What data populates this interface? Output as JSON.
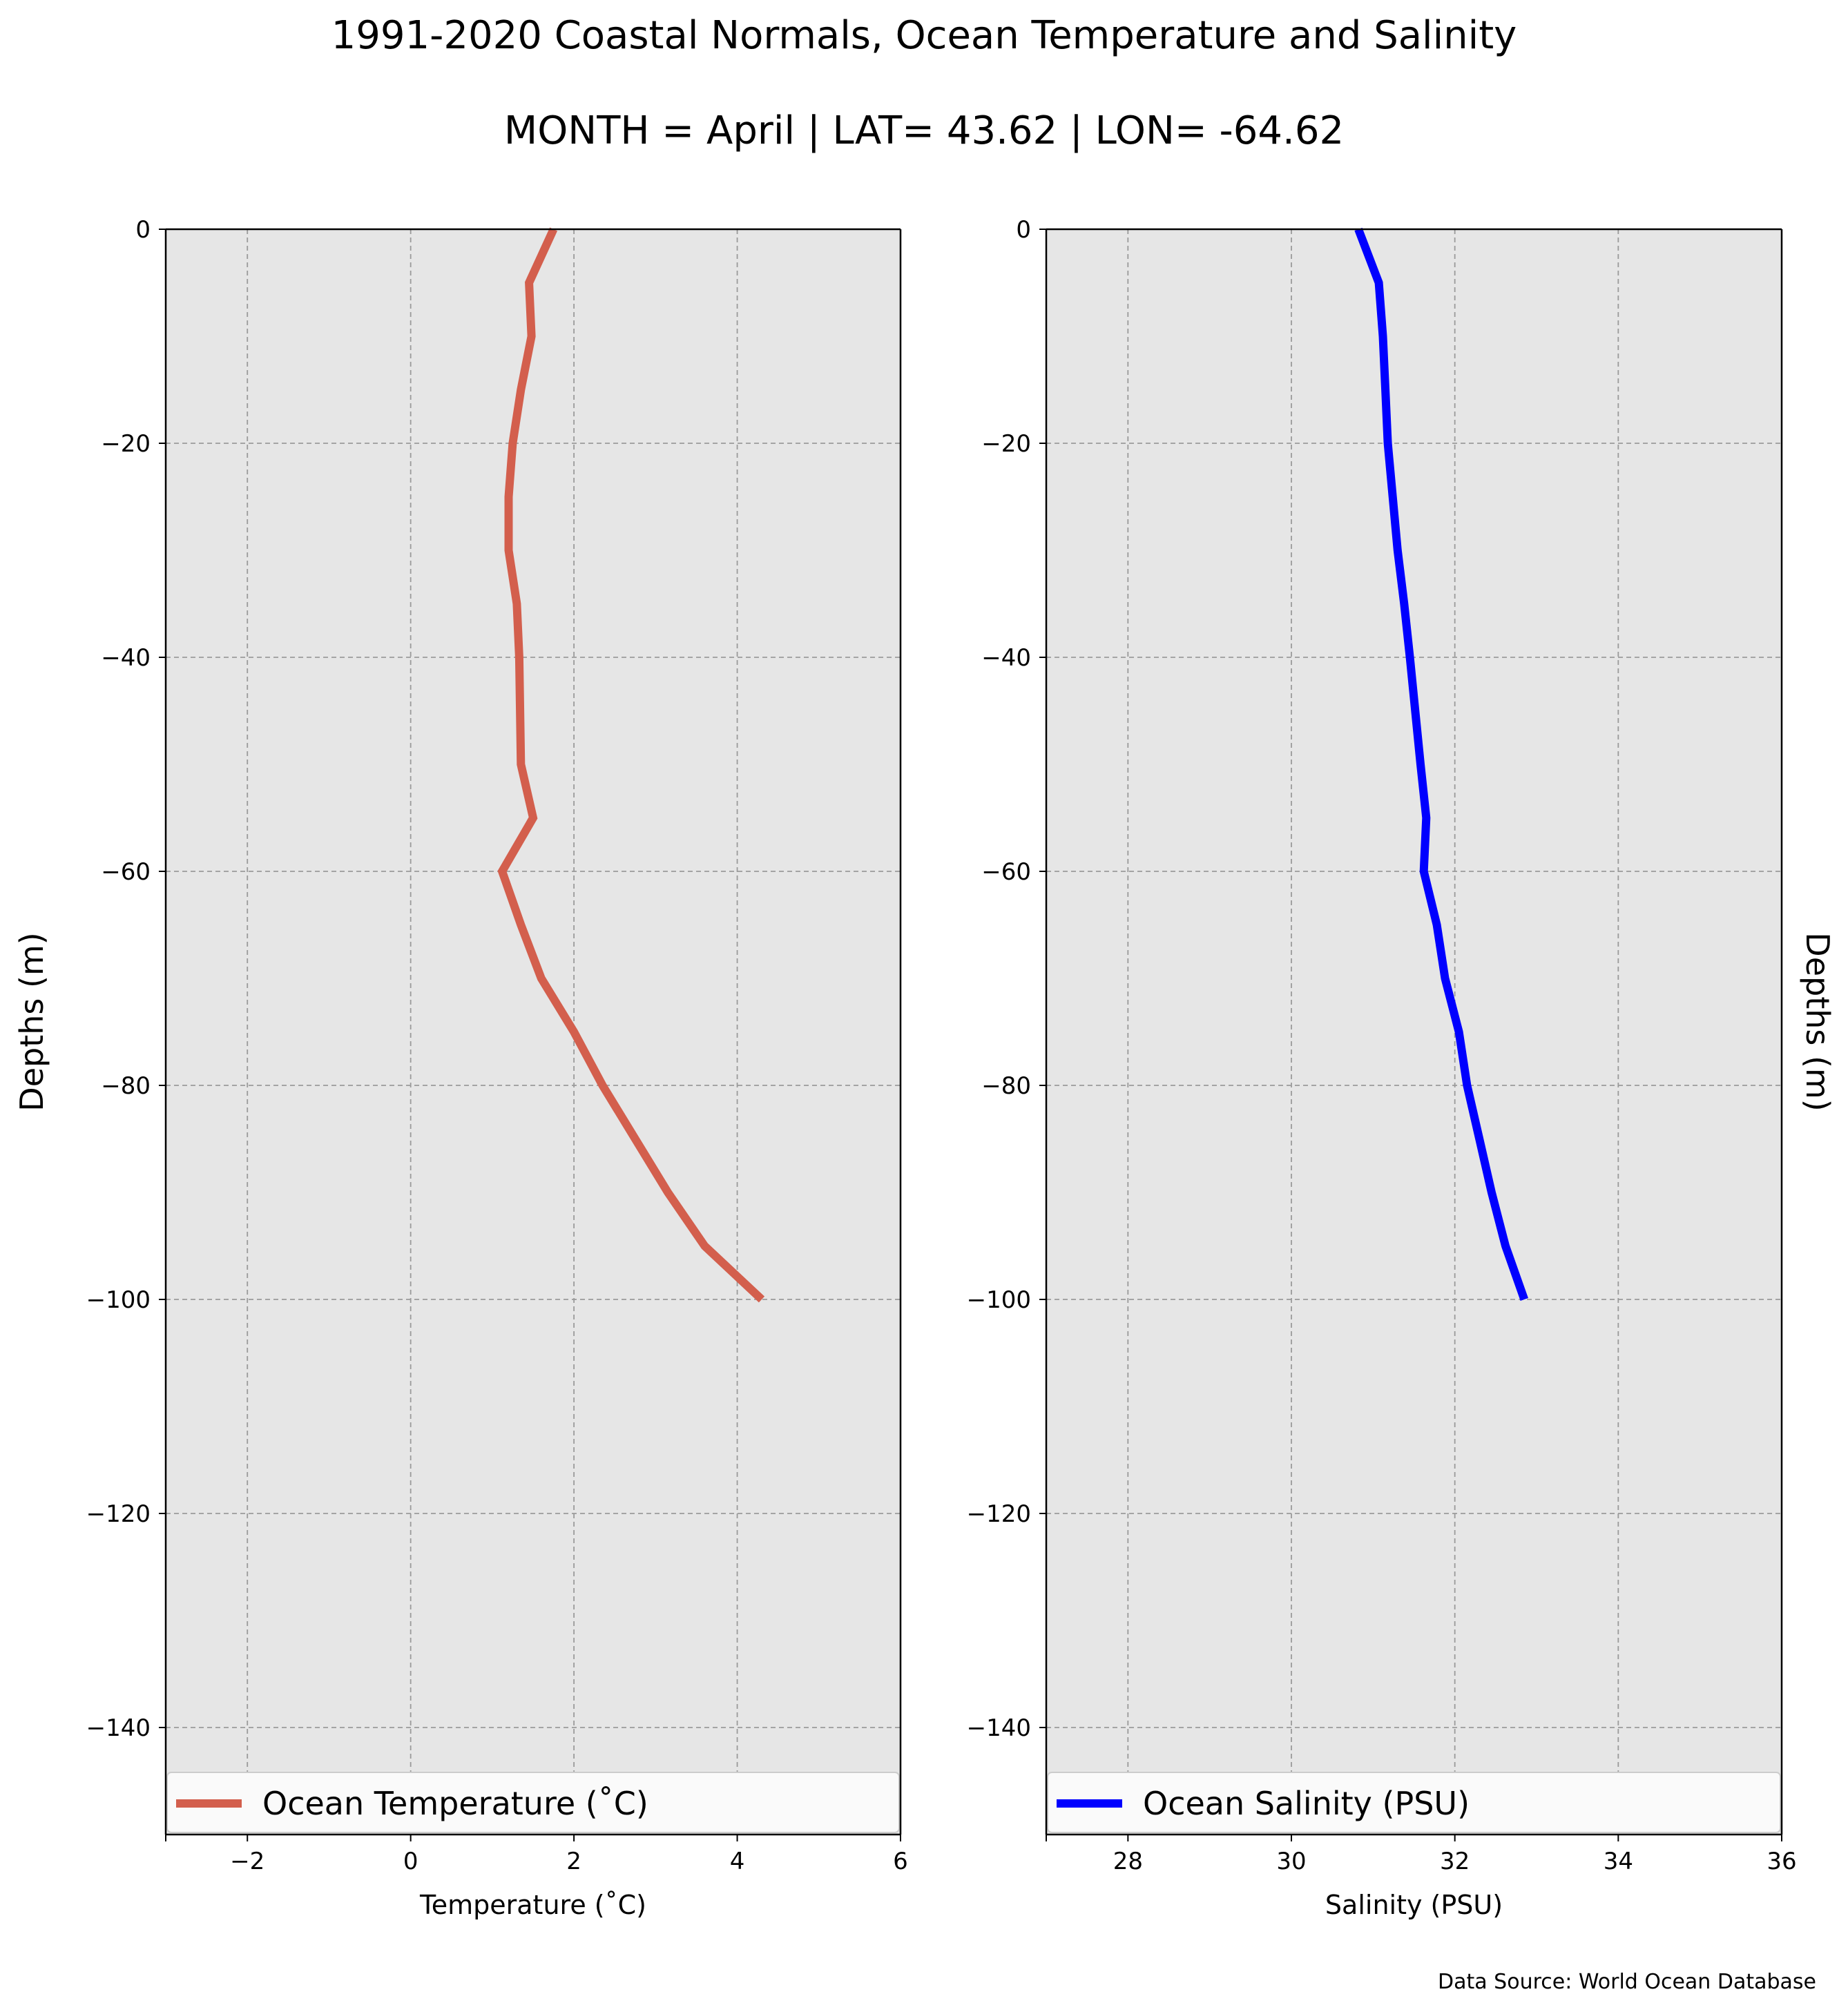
{
  "title": "1991-2020 Coastal Normals, Ocean Temperature and Salinity",
  "subtitle": "MONTH = April | LAT= 43.62 | LON= -64.62",
  "source_note": "Data Source: World Ocean Database",
  "chart_data": [
    {
      "type": "line",
      "xlabel": "Temperature (˚C)",
      "ylabel": "Depths (m)",
      "xlim": [
        -3,
        6
      ],
      "ylim": [
        -150,
        0
      ],
      "xticks": [
        -2,
        0,
        2,
        4,
        6
      ],
      "xtick_labels": [
        "−2",
        "0",
        "2",
        "4",
        "6"
      ],
      "yticks": [
        0,
        -20,
        -40,
        -60,
        -80,
        -100,
        -120,
        -140
      ],
      "ytick_labels": [
        "0",
        "−20",
        "−40",
        "−60",
        "−80",
        "−100",
        "−120",
        "−140"
      ],
      "grid": true,
      "legend": "bottom",
      "color": "#d35f4d",
      "series": [
        {
          "name": "Ocean Temperature (˚C)",
          "x": [
            1.75,
            1.45,
            1.48,
            1.35,
            1.25,
            1.2,
            1.2,
            1.3,
            1.33,
            1.35,
            1.5,
            1.12,
            1.35,
            1.6,
            2.0,
            2.35,
            2.75,
            3.15,
            3.6,
            4.3
          ],
          "y": [
            0,
            -5,
            -10,
            -15,
            -20,
            -25,
            -30,
            -35,
            -40,
            -50,
            -55,
            -60,
            -65,
            -70,
            -75,
            -80,
            -85,
            -90,
            -95,
            -100
          ]
        }
      ]
    },
    {
      "type": "line",
      "xlabel": "Salinity (PSU)",
      "ylabel": "Depths (m)",
      "xlim": [
        27,
        36
      ],
      "ylim": [
        -150,
        0
      ],
      "xticks": [
        28,
        30,
        32,
        34,
        36
      ],
      "xtick_labels": [
        "28",
        "30",
        "32",
        "34",
        "36"
      ],
      "yticks": [
        0,
        -20,
        -40,
        -60,
        -80,
        -100,
        -120,
        -140
      ],
      "ytick_labels": [
        "0",
        "−20",
        "−40",
        "−60",
        "−80",
        "−100",
        "−120",
        "−140"
      ],
      "grid": true,
      "legend": "bottom",
      "color": "#0000ff",
      "series": [
        {
          "name": "Ocean Salinity (PSU)",
          "x": [
            30.82,
            31.07,
            31.12,
            31.15,
            31.18,
            31.24,
            31.3,
            31.38,
            31.45,
            31.58,
            31.65,
            31.62,
            31.78,
            31.88,
            32.05,
            32.15,
            32.3,
            32.45,
            32.62,
            32.85
          ],
          "y": [
            0,
            -5,
            -10,
            -15,
            -20,
            -25,
            -30,
            -35,
            -40,
            -50,
            -55,
            -60,
            -65,
            -70,
            -75,
            -80,
            -85,
            -90,
            -95,
            -100
          ]
        }
      ]
    }
  ]
}
